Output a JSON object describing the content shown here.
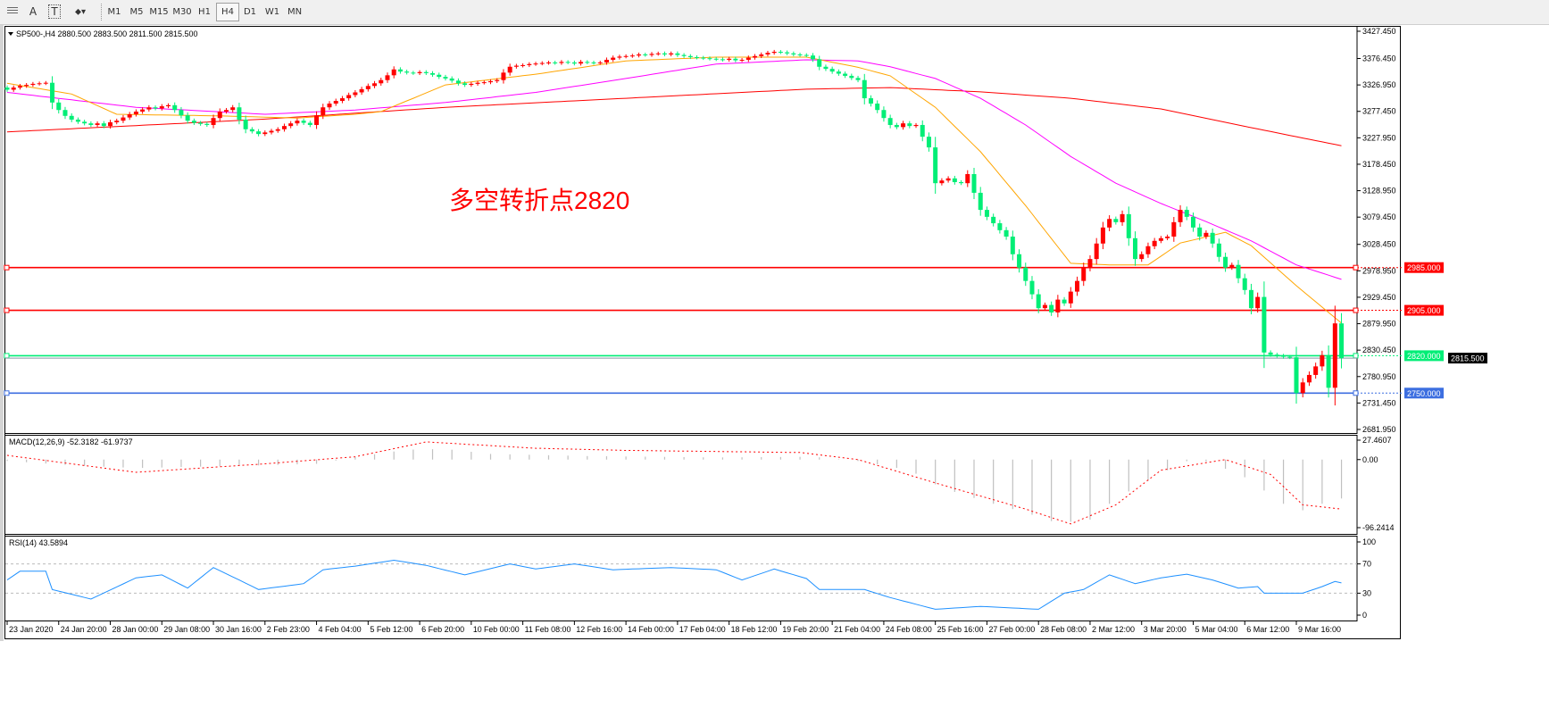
{
  "toolbar": {
    "tools": [
      {
        "name": "period-separators-icon",
        "label": ""
      },
      {
        "name": "text-tool-icon",
        "label": "A"
      },
      {
        "name": "text-label-tool-icon",
        "label": "T"
      },
      {
        "name": "arrows-tool-icon",
        "label": "⬥▾"
      }
    ],
    "timeframes": [
      "M1",
      "M5",
      "M15",
      "M30",
      "H1",
      "H4",
      "D1",
      "W1",
      "MN"
    ],
    "active_timeframe": "H4"
  },
  "chart_data": {
    "type": "candlestick",
    "header": "SP500-,H4  2880.500 2883.500 2811.500 2815.500",
    "annotation": "多空转折点2820",
    "ylim": [
      2681.95,
      3427.45
    ],
    "price_ticks": [
      "3427.450",
      "3376.450",
      "3326.950",
      "3277.450",
      "3227.950",
      "3178.450",
      "3128.950",
      "3079.450",
      "3028.450",
      "2978.950",
      "2929.450",
      "2879.950",
      "2830.450",
      "2780.950",
      "2731.450",
      "2681.950"
    ],
    "date_labels": [
      "23 Jan 2020",
      "24 Jan 20:00",
      "28 Jan 00:00",
      "29 Jan 08:00",
      "30 Jan 16:00",
      "2 Feb 23:00",
      "4 Feb 04:00",
      "5 Feb 12:00",
      "6 Feb 20:00",
      "10 Feb 00:00",
      "11 Feb 08:00",
      "12 Feb 16:00",
      "14 Feb 00:00",
      "17 Feb 04:00",
      "18 Feb 12:00",
      "19 Feb 20:00",
      "21 Feb 04:00",
      "24 Feb 08:00",
      "25 Feb 16:00",
      "27 Feb 00:00",
      "28 Feb 08:00",
      "2 Mar 12:00",
      "3 Mar 20:00",
      "5 Mar 04:00",
      "6 Mar 12:00",
      "9 Mar 16:00"
    ],
    "bars_per_date_label": 8,
    "close": [
      3318,
      3322,
      3325,
      3327,
      3329,
      3330,
      3331,
      3294,
      3280,
      3269,
      3262,
      3258,
      3255,
      3252,
      3255,
      3250,
      3257,
      3260,
      3266,
      3272,
      3277,
      3281,
      3285,
      3283,
      3287,
      3289,
      3280,
      3270,
      3260,
      3256,
      3254,
      3252,
      3265,
      3277,
      3280,
      3285,
      3262,
      3244,
      3240,
      3235,
      3238,
      3241,
      3244,
      3250,
      3255,
      3260,
      3256,
      3252,
      3270,
      3285,
      3292,
      3297,
      3302,
      3308,
      3313,
      3319,
      3325,
      3330,
      3336,
      3345,
      3356,
      3352,
      3350,
      3349,
      3351,
      3349,
      3346,
      3342,
      3339,
      3335,
      3330,
      3327,
      3329,
      3331,
      3332,
      3334,
      3336,
      3350,
      3361,
      3363,
      3364,
      3366,
      3367,
      3368,
      3369,
      3368,
      3370,
      3369,
      3367,
      3370,
      3369,
      3368,
      3369,
      3374,
      3378,
      3380,
      3381,
      3382,
      3384,
      3383,
      3385,
      3386,
      3384,
      3386,
      3383,
      3381,
      3379,
      3378,
      3377,
      3376,
      3375,
      3374,
      3376,
      3373,
      3374,
      3378,
      3381,
      3384,
      3387,
      3389,
      3388,
      3386,
      3384,
      3383,
      3382,
      3375,
      3361,
      3357,
      3352,
      3348,
      3344,
      3340,
      3336,
      3302,
      3292,
      3280,
      3265,
      3252,
      3248,
      3255,
      3250,
      3252,
      3230,
      3210,
      3143,
      3148,
      3152,
      3145,
      3143,
      3160,
      3125,
      3093,
      3080,
      3068,
      3055,
      3043,
      3010,
      2985,
      2960,
      2935,
      2909,
      2915,
      2901,
      2925,
      2918,
      2940,
      2960,
      2985,
      3001,
      3030,
      3060,
      3076,
      3070,
      3085,
      3040,
      3001,
      3010,
      3025,
      3035,
      3040,
      3043,
      3070,
      3093,
      3080,
      3060,
      3043,
      3050,
      3030,
      3005,
      2985,
      2990,
      2965,
      2943,
      2909,
      2930,
      2826,
      2822,
      2820,
      2818,
      2817,
      2750,
      2770,
      2784,
      2800,
      2821,
      2760,
      2880.5,
      2815.5
    ],
    "last_open": 2880.5,
    "colors": {
      "bull": "#ff0000",
      "bear": "#00ee76",
      "ma_fast": "#ffa500",
      "ma_mid": "#ff00ff",
      "ma_slow": "#ff0000"
    },
    "moving_averages": {
      "fast": [
        [
          0,
          3330
        ],
        [
          10,
          3310
        ],
        [
          17,
          3272
        ],
        [
          33,
          3269
        ],
        [
          45,
          3265
        ],
        [
          54,
          3272
        ],
        [
          58,
          3277
        ],
        [
          68,
          3327
        ],
        [
          82,
          3347
        ],
        [
          96,
          3372
        ],
        [
          110,
          3379
        ],
        [
          124,
          3379
        ],
        [
          132,
          3360
        ],
        [
          137,
          3344
        ],
        [
          144,
          3285
        ],
        [
          151,
          3202
        ],
        [
          158,
          3101
        ],
        [
          165,
          2993
        ],
        [
          171,
          2990
        ],
        [
          177,
          2990
        ],
        [
          182,
          3031
        ],
        [
          189,
          3051
        ],
        [
          193,
          3026
        ],
        [
          200,
          2951
        ],
        [
          207,
          2881
        ]
      ],
      "mid": [
        [
          0,
          3313
        ],
        [
          20,
          3285
        ],
        [
          40,
          3272
        ],
        [
          54,
          3280
        ],
        [
          68,
          3294
        ],
        [
          82,
          3313
        ],
        [
          96,
          3339
        ],
        [
          110,
          3366
        ],
        [
          124,
          3374
        ],
        [
          132,
          3372
        ],
        [
          137,
          3361
        ],
        [
          144,
          3339
        ],
        [
          151,
          3302
        ],
        [
          158,
          3252
        ],
        [
          165,
          3193
        ],
        [
          172,
          3143
        ],
        [
          179,
          3105
        ],
        [
          186,
          3071
        ],
        [
          193,
          3035
        ],
        [
          200,
          2990
        ],
        [
          207,
          2963
        ]
      ],
      "slow": [
        [
          0,
          3239
        ],
        [
          27,
          3255
        ],
        [
          40,
          3263
        ],
        [
          68,
          3285
        ],
        [
          96,
          3302
        ],
        [
          124,
          3319
        ],
        [
          137,
          3322
        ],
        [
          151,
          3314
        ],
        [
          165,
          3302
        ],
        [
          179,
          3282
        ],
        [
          193,
          3247
        ],
        [
          207,
          3213
        ]
      ]
    },
    "horizontal_lines": [
      {
        "price": 2985,
        "label": "2985.000",
        "color": "#ff0000"
      },
      {
        "price": 2905,
        "label": "2905.000",
        "color": "#ff0000"
      },
      {
        "price": 2820,
        "label": "2820.000",
        "color": "#00ee76"
      },
      {
        "price": 2750,
        "label": "2750.000",
        "color": "#3c6ee0"
      }
    ],
    "bid_label": "2815.500",
    "macd": {
      "label": "MACD(12,26,9) -52.3182 -61.9737",
      "ylim": [
        -96.2414,
        27.4607
      ],
      "ticks": [
        "27.4607",
        "0.00",
        "-96.2414"
      ],
      "histogram": [
        [
          0,
          -2
        ],
        [
          10,
          -8
        ],
        [
          20,
          -12
        ],
        [
          30,
          -10
        ],
        [
          40,
          -8
        ],
        [
          48,
          -6
        ],
        [
          55,
          5
        ],
        [
          62,
          14
        ],
        [
          68,
          15
        ],
        [
          75,
          8
        ],
        [
          90,
          5
        ],
        [
          110,
          3
        ],
        [
          125,
          4
        ],
        [
          132,
          -2
        ],
        [
          140,
          -15
        ],
        [
          145,
          -40
        ],
        [
          152,
          -60
        ],
        [
          158,
          -75
        ],
        [
          163,
          -90
        ],
        [
          168,
          -85
        ],
        [
          172,
          -55
        ],
        [
          176,
          -35
        ],
        [
          180,
          -15
        ],
        [
          184,
          2
        ],
        [
          187,
          -5
        ],
        [
          192,
          -25
        ],
        [
          196,
          -50
        ],
        [
          200,
          -75
        ],
        [
          203,
          -65
        ],
        [
          207,
          -55
        ]
      ],
      "signal": [
        [
          0,
          6
        ],
        [
          20,
          -18
        ],
        [
          40,
          -6
        ],
        [
          54,
          4
        ],
        [
          65,
          25
        ],
        [
          82,
          16
        ],
        [
          96,
          13
        ],
        [
          123,
          10
        ],
        [
          132,
          0
        ],
        [
          144,
          -33
        ],
        [
          158,
          -70
        ],
        [
          165,
          -91
        ],
        [
          172,
          -64
        ],
        [
          179,
          -15
        ],
        [
          189,
          0
        ],
        [
          196,
          -21
        ],
        [
          201,
          -64
        ],
        [
          207,
          -70
        ]
      ]
    },
    "rsi": {
      "label": "RSI(14) 43.5894",
      "ylim": [
        0,
        100
      ],
      "ticks": [
        "100",
        "70",
        "30",
        "0"
      ],
      "levels": [
        70,
        30
      ],
      "values": [
        [
          0,
          48
        ],
        [
          2,
          60
        ],
        [
          6,
          60
        ],
        [
          7,
          35
        ],
        [
          13,
          22
        ],
        [
          20,
          51
        ],
        [
          24,
          55
        ],
        [
          28,
          37
        ],
        [
          32,
          65
        ],
        [
          36,
          48
        ],
        [
          39,
          35
        ],
        [
          46,
          43
        ],
        [
          49,
          62
        ],
        [
          54,
          67
        ],
        [
          60,
          75
        ],
        [
          65,
          68
        ],
        [
          71,
          55
        ],
        [
          78,
          70
        ],
        [
          82,
          63
        ],
        [
          88,
          70
        ],
        [
          94,
          62
        ],
        [
          103,
          65
        ],
        [
          110,
          62
        ],
        [
          114,
          48
        ],
        [
          119,
          63
        ],
        [
          124,
          50
        ],
        [
          126,
          35
        ],
        [
          133,
          35
        ],
        [
          137,
          24
        ],
        [
          144,
          8
        ],
        [
          151,
          12
        ],
        [
          160,
          8
        ],
        [
          164,
          30
        ],
        [
          167,
          35
        ],
        [
          171,
          55
        ],
        [
          175,
          43
        ],
        [
          179,
          51
        ],
        [
          183,
          56
        ],
        [
          187,
          48
        ],
        [
          191,
          37
        ],
        [
          194,
          39
        ],
        [
          195,
          30
        ],
        [
          201,
          30
        ],
        [
          204,
          39
        ],
        [
          206,
          46
        ],
        [
          207,
          44
        ]
      ]
    }
  }
}
